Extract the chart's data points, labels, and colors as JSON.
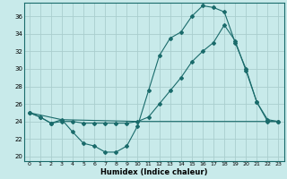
{
  "bg_color": "#c8eaea",
  "grid_color": "#aacece",
  "line_color": "#1a6b6b",
  "xlabel": "Humidex (Indice chaleur)",
  "xlim": [
    -0.5,
    23.5
  ],
  "ylim": [
    19.5,
    37.5
  ],
  "yticks": [
    20,
    22,
    24,
    26,
    28,
    30,
    32,
    34,
    36
  ],
  "xticks": [
    0,
    1,
    2,
    3,
    4,
    5,
    6,
    7,
    8,
    9,
    10,
    11,
    12,
    13,
    14,
    15,
    16,
    17,
    18,
    19,
    20,
    21,
    22,
    23
  ],
  "line1_x": [
    0,
    1,
    2,
    3,
    4,
    5,
    6,
    7,
    8,
    9,
    10,
    11,
    12,
    13,
    14,
    15,
    16,
    17,
    18,
    19,
    20,
    21,
    22,
    23
  ],
  "line1_y": [
    25.0,
    24.5,
    23.8,
    24.2,
    22.8,
    21.5,
    21.2,
    20.5,
    20.5,
    21.2,
    23.5,
    27.5,
    31.5,
    33.5,
    34.2,
    36.0,
    37.2,
    37.0,
    36.5,
    33.0,
    30.0,
    26.2,
    24.0,
    24.0
  ],
  "line2_x": [
    0,
    1,
    2,
    3,
    4,
    5,
    6,
    7,
    8,
    9,
    10,
    11,
    12,
    13,
    14,
    15,
    16,
    17,
    18,
    19,
    20,
    21,
    22,
    23
  ],
  "line2_y": [
    25.0,
    24.5,
    23.8,
    24.0,
    24.0,
    23.8,
    23.8,
    23.8,
    23.8,
    23.8,
    24.0,
    24.5,
    26.0,
    27.5,
    29.0,
    30.8,
    32.0,
    33.0,
    35.0,
    33.2,
    29.8,
    26.2,
    24.2,
    24.0
  ],
  "line3_x": [
    0,
    3,
    10,
    18,
    23
  ],
  "line3_y": [
    25.0,
    24.2,
    24.0,
    24.0,
    24.0
  ]
}
